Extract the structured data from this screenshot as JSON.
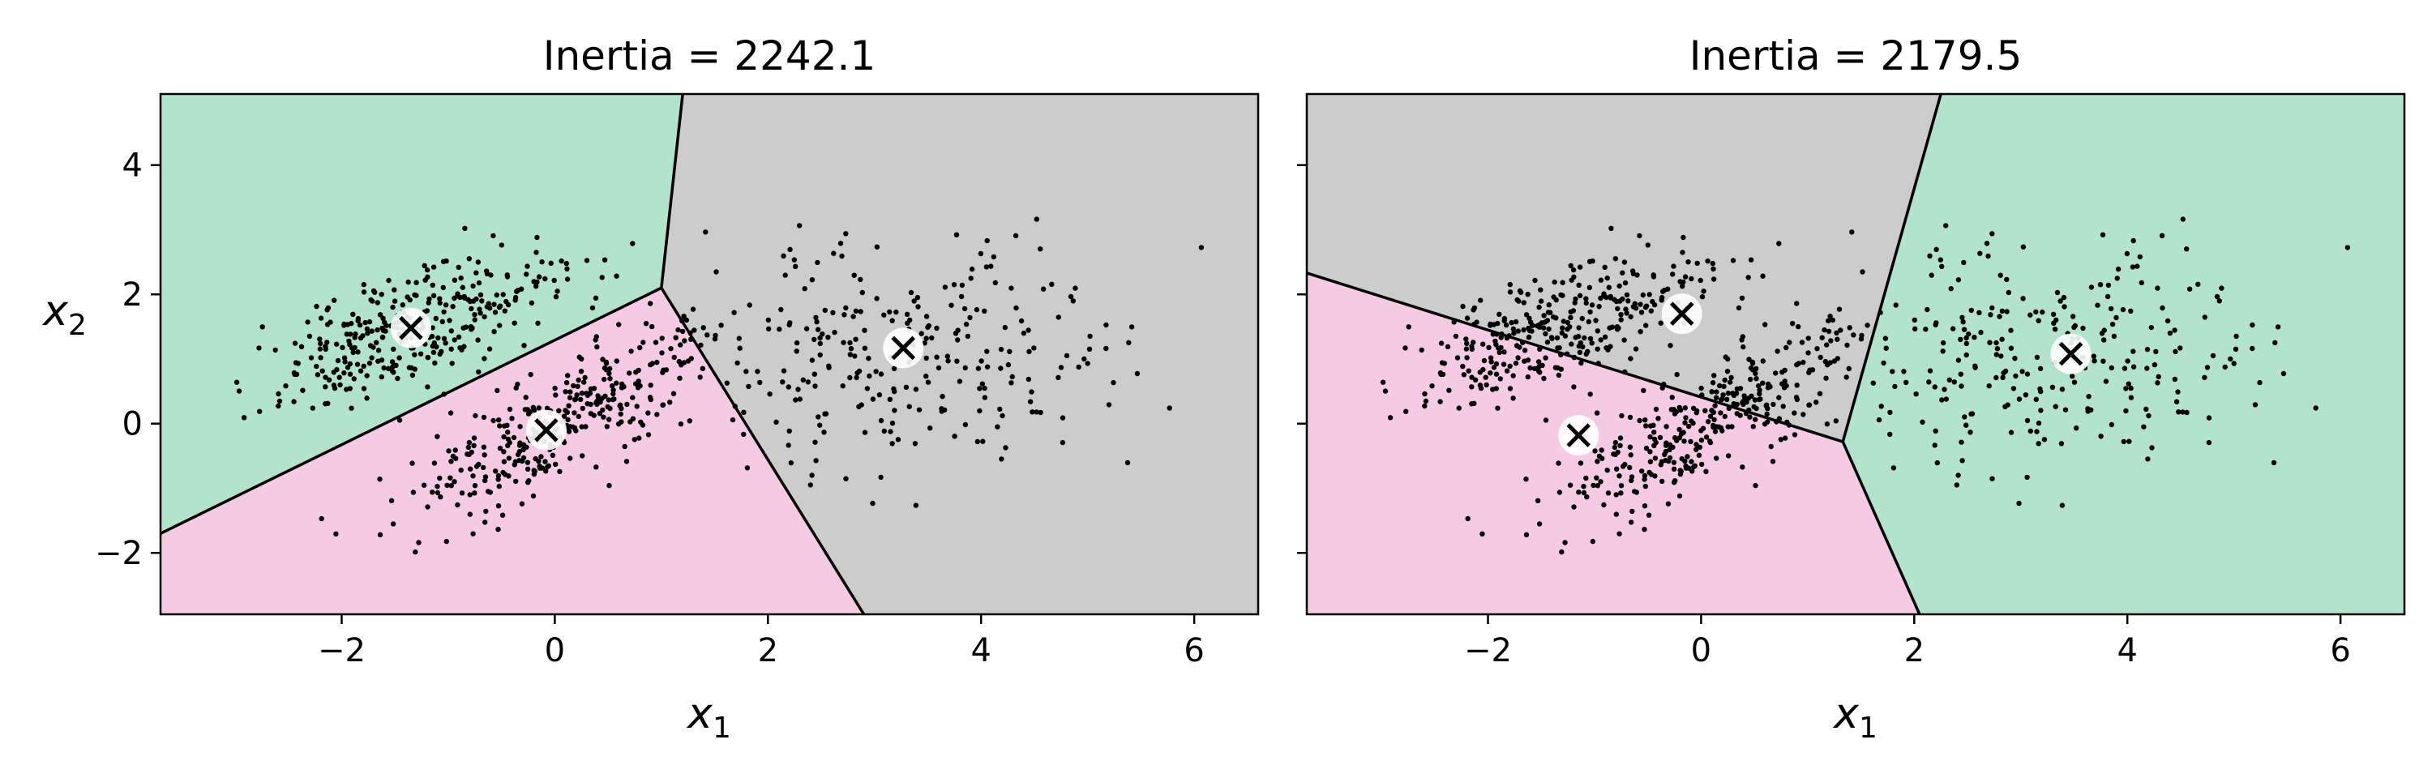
{
  "colors": {
    "green": "#b3e2cd",
    "pink": "#f4cae4",
    "gray": "#cccccc",
    "points": "#000000",
    "boundary": "#000000"
  },
  "chart_data": [
    {
      "type": "scatter",
      "title": "Inertia = 2242.1",
      "xlabel": "x",
      "xlabel_sub": "1",
      "ylabel": "x",
      "ylabel_sub": "2",
      "xlim": [
        -3.7,
        6.6
      ],
      "ylim": [
        -2.95,
        5.1
      ],
      "xticks": [
        -2,
        0,
        2,
        4,
        6
      ],
      "yticks": [
        -2,
        0,
        2,
        4
      ],
      "xtick_labels": [
        "−2",
        "0",
        "2",
        "4",
        "6"
      ],
      "ytick_labels": [
        "−2",
        "0",
        "2",
        "4"
      ],
      "centroids": [
        {
          "x": -1.35,
          "y": 1.48,
          "region": "green"
        },
        {
          "x": -0.08,
          "y": -0.1,
          "region": "pink"
        },
        {
          "x": 3.27,
          "y": 1.17,
          "region": "gray"
        }
      ],
      "grid": false
    },
    {
      "type": "scatter",
      "title": "Inertia = 2179.5",
      "xlabel": "x",
      "xlabel_sub": "1",
      "ylabel": "",
      "ylabel_sub": "",
      "xlim": [
        -3.7,
        6.6
      ],
      "ylim": [
        -2.95,
        5.1
      ],
      "xticks": [
        -2,
        0,
        2,
        4,
        6
      ],
      "yticks": [
        -2,
        0,
        2,
        4
      ],
      "xtick_labels": [
        "−2",
        "0",
        "2",
        "4",
        "6"
      ],
      "ytick_labels": [],
      "centroids": [
        {
          "x": -0.18,
          "y": 1.7,
          "region": "gray"
        },
        {
          "x": -1.15,
          "y": -0.18,
          "region": "pink"
        },
        {
          "x": 3.47,
          "y": 1.08,
          "region": "green"
        }
      ],
      "grid": false
    }
  ]
}
